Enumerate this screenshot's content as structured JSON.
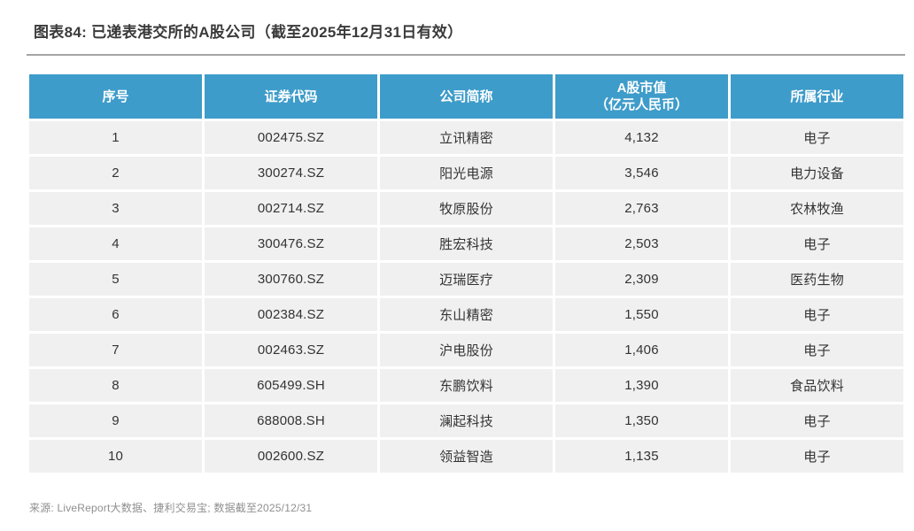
{
  "page": {
    "title": "图表84: 已递表港交所的A股公司（截至2025年12月31日有效）",
    "source_note": "来源: LiveReport大数据、捷利交易宝; 数据截至2025/12/31"
  },
  "colors": {
    "page_bg": "#ffffff",
    "header_bg": "#3e9cca",
    "row_bg": "#f0f0f0",
    "title_text": "#3a3a3a",
    "cell_text": "#333333",
    "divider": "#a5a5a5",
    "source_text": "#8f8f8f"
  },
  "table": {
    "columns": [
      {
        "line1": "序号",
        "line2": ""
      },
      {
        "line1": "证券代码",
        "line2": ""
      },
      {
        "line1": "公司简称",
        "line2": ""
      },
      {
        "line1": "A股市值",
        "line2": "（亿元人民币）"
      },
      {
        "line1": "所属行业",
        "line2": ""
      }
    ]
  },
  "chart_data": {
    "type": "table",
    "title": "图表84: 已递表港交所的A股公司（截至2025年12月31日有效）",
    "columns": [
      "序号",
      "证券代码",
      "公司简称",
      "A股市值（亿元人民币）",
      "所属行业"
    ],
    "rows": [
      [
        "1",
        "002475.SZ",
        "立讯精密",
        "4,132",
        "电子"
      ],
      [
        "2",
        "300274.SZ",
        "阳光电源",
        "3,546",
        "电力设备"
      ],
      [
        "3",
        "002714.SZ",
        "牧原股份",
        "2,763",
        "农林牧渔"
      ],
      [
        "4",
        "300476.SZ",
        "胜宏科技",
        "2,503",
        "电子"
      ],
      [
        "5",
        "300760.SZ",
        "迈瑞医疗",
        "2,309",
        "医药生物"
      ],
      [
        "6",
        "002384.SZ",
        "东山精密",
        "1,550",
        "电子"
      ],
      [
        "7",
        "002463.SZ",
        "沪电股份",
        "1,406",
        "电子"
      ],
      [
        "8",
        "605499.SH",
        "东鹏饮料",
        "1,390",
        "食品饮料"
      ],
      [
        "9",
        "688008.SH",
        "澜起科技",
        "1,350",
        "电子"
      ],
      [
        "10",
        "002600.SZ",
        "领益智造",
        "1,135",
        "电子"
      ]
    ],
    "source": "来源: LiveReport大数据、捷利交易宝; 数据截至2025/12/31"
  }
}
